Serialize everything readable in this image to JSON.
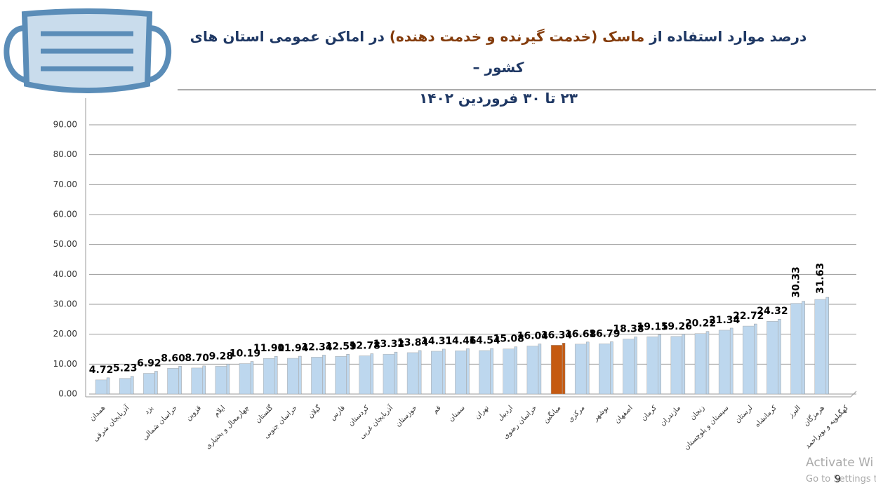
{
  "title": {
    "line1": [
      "درصد موارد استفاده از",
      "ماسک (خدمت گیرنده و خدمت دهنده)",
      "در اماکن عمومی استان های کشور –"
    ],
    "line2": "۲۳ تا ۳۰ فروردین ۱۴۰۲"
  },
  "page_number": "9",
  "watermark": [
    "Activate Wi",
    "Go to Settings t"
  ],
  "chart_data": {
    "type": "bar",
    "categories": [
      "همدان",
      "آذربایجان شرقی",
      "یزد",
      "خراسان شمالی",
      "قزوین",
      "ایلام",
      "چهارمحال و بختیاری",
      "گلستان",
      "خراسان جنوبی",
      "گیلان",
      "فارس",
      "کردستان",
      "آذربایجان غربی",
      "خوزستان",
      "قم",
      "سمنان",
      "تهران",
      "اردبیل",
      "خراسان رضوی",
      "میانگین",
      "مرکزی",
      "بوشهر",
      "اصفهان",
      "کرمان",
      "مازندران",
      "زنجان",
      "سیستان و بلوچستان",
      "لرستان",
      "کرمانشاه",
      "البرز",
      "هرمزگان",
      "کهگیلویه و بویراحمد"
    ],
    "values": [
      4.72,
      5.23,
      6.92,
      8.6,
      8.7,
      9.28,
      10.19,
      11.9,
      11.94,
      12.34,
      12.59,
      12.78,
      13.32,
      13.84,
      14.31,
      14.46,
      14.54,
      15.08,
      16.04,
      16.34,
      16.68,
      16.79,
      18.38,
      19.15,
      19.26,
      20.22,
      21.34,
      22.72,
      24.32,
      30.33,
      31.63,
      null
    ],
    "value_labels": [
      "4.72",
      "5.23",
      "6.92",
      "8.60",
      "8.70",
      "9.28",
      "10.19",
      "11.90",
      "11.94",
      "12.34",
      "12.59",
      "12.78",
      "13.32",
      "13.84",
      "14.31",
      "14.46",
      "14.54",
      "15.08",
      "16.04",
      "16.34",
      "16.68",
      "16.79",
      "18.38",
      "19.15",
      "19.26",
      "20.22",
      "21.34",
      "22.72",
      "24.32",
      "30.33",
      "31.63",
      null
    ],
    "colors": [
      "#bdd7ee",
      "#bdd7ee",
      "#bdd7ee",
      "#bdd7ee",
      "#bdd7ee",
      "#bdd7ee",
      "#bdd7ee",
      "#bdd7ee",
      "#bdd7ee",
      "#bdd7ee",
      "#bdd7ee",
      "#bdd7ee",
      "#bdd7ee",
      "#bdd7ee",
      "#bdd7ee",
      "#bdd7ee",
      "#bdd7ee",
      "#bdd7ee",
      "#bdd7ee",
      "#c55a11",
      "#bdd7ee",
      "#bdd7ee",
      "#bdd7ee",
      "#bdd7ee",
      "#bdd7ee",
      "#bdd7ee",
      "#bdd7ee",
      "#bdd7ee",
      "#bdd7ee",
      "#bdd7ee",
      "#bdd7ee",
      null
    ],
    "ylim": [
      0,
      90
    ],
    "yticks": [
      {
        "value": 0,
        "label": "0.00"
      },
      {
        "value": 10,
        "label": "10.00"
      },
      {
        "value": 20,
        "label": "20.00"
      },
      {
        "value": 30,
        "label": "30.00"
      },
      {
        "value": 40,
        "label": "40.00"
      },
      {
        "value": 50,
        "label": "50.00"
      },
      {
        "value": 60,
        "label": "60.00"
      },
      {
        "value": 70,
        "label": "70.00"
      },
      {
        "value": 80,
        "label": "80.00"
      },
      {
        "value": 90,
        "label": "90.00"
      }
    ],
    "grid": true
  }
}
